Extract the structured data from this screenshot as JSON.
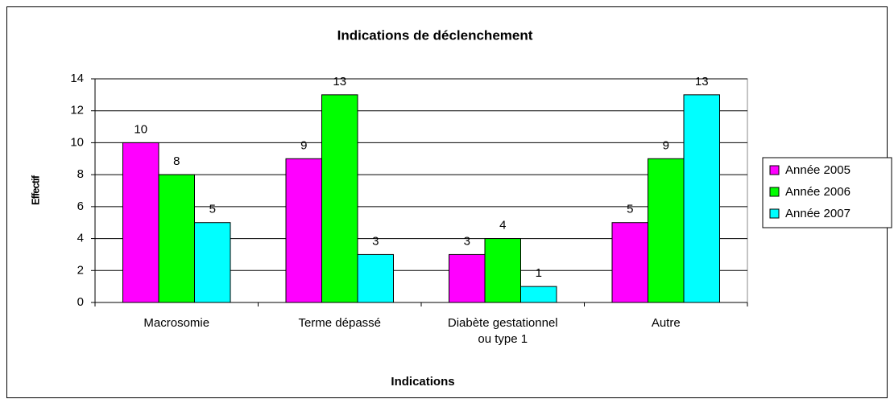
{
  "chart_data": {
    "type": "bar",
    "title": "Indications de déclenchement",
    "x_label": "Indications",
    "y_label": "Effectif",
    "categories": [
      "Macrosomie",
      "Terme dépassé",
      "Diabète gestationnel ou type 1",
      "Autre"
    ],
    "series": [
      {
        "name": "Année 2005",
        "color": "#ff00ff",
        "values": [
          10,
          9,
          3,
          5
        ]
      },
      {
        "name": "Année 2006",
        "color": "#00ff00",
        "values": [
          8,
          13,
          4,
          9
        ]
      },
      {
        "name": "Année 2007",
        "color": "#00ffff",
        "values": [
          5,
          3,
          1,
          13
        ]
      }
    ],
    "ylim": [
      0,
      14
    ],
    "yticks": [
      0,
      2,
      4,
      6,
      8,
      10,
      12,
      14
    ],
    "grid": true,
    "legend": "right"
  }
}
